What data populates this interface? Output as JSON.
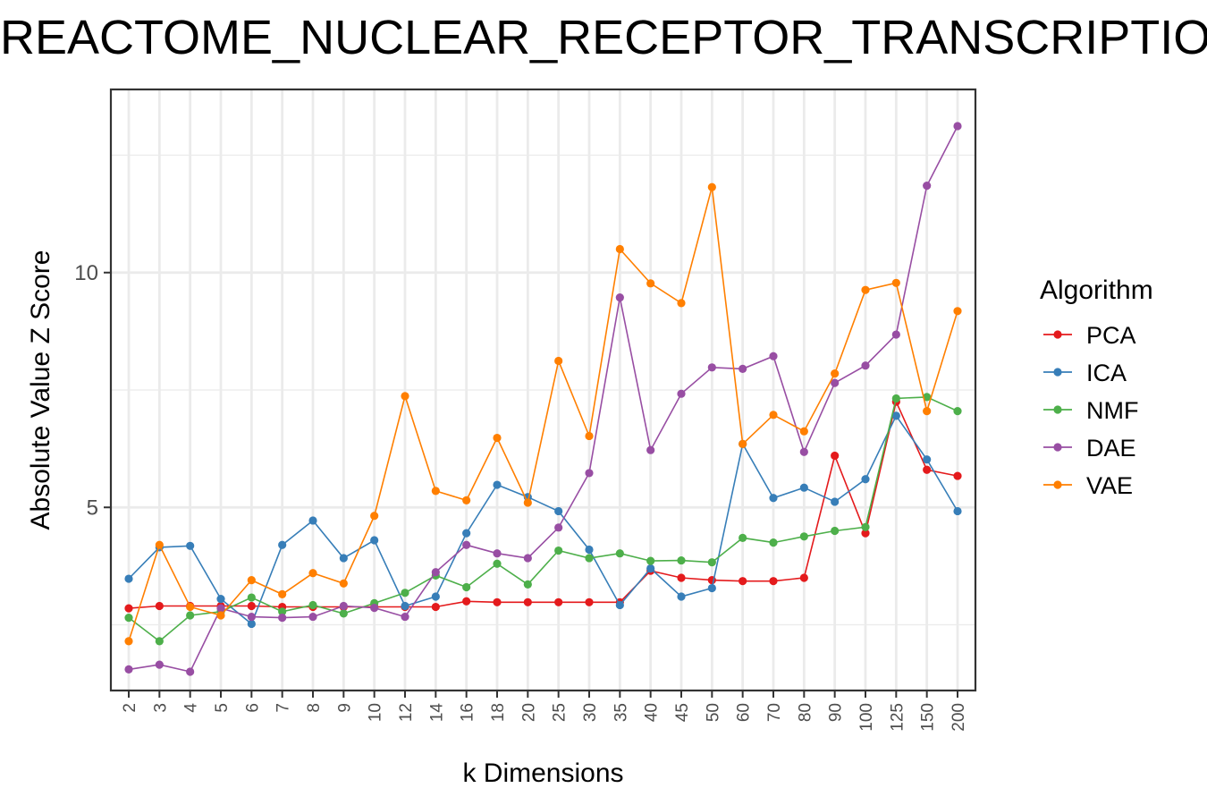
{
  "chart_data": {
    "type": "line",
    "title": "REACTOME_NUCLEAR_RECEPTOR_TRANSCRIPTION_PATHWAY",
    "xlabel": "k Dimensions",
    "ylabel": "Absolute Value Z Score",
    "categories": [
      "2",
      "3",
      "4",
      "5",
      "6",
      "7",
      "8",
      "9",
      "10",
      "12",
      "14",
      "16",
      "18",
      "20",
      "25",
      "30",
      "35",
      "40",
      "45",
      "50",
      "60",
      "70",
      "80",
      "90",
      "100",
      "125",
      "150",
      "200"
    ],
    "ylim": [
      1.1,
      13.9
    ],
    "yticks": [
      5,
      10
    ],
    "grid": true,
    "legend": {
      "title": "Algorithm",
      "position": "right"
    },
    "series": [
      {
        "name": "PCA",
        "color": "#e41a1c",
        "values": [
          2.85,
          2.9,
          2.9,
          2.9,
          2.9,
          2.88,
          2.88,
          2.88,
          2.88,
          2.88,
          2.88,
          3.0,
          2.98,
          2.98,
          2.98,
          2.98,
          2.98,
          3.65,
          3.5,
          3.45,
          3.43,
          3.43,
          3.5,
          6.1,
          4.45,
          7.25,
          5.8,
          5.67
        ]
      },
      {
        "name": "ICA",
        "color": "#377eb8",
        "values": [
          3.48,
          4.15,
          4.18,
          3.05,
          2.52,
          4.2,
          4.72,
          3.92,
          4.3,
          2.9,
          3.1,
          4.45,
          5.48,
          5.22,
          4.92,
          4.1,
          2.92,
          3.7,
          3.1,
          3.28,
          6.35,
          5.2,
          5.42,
          5.12,
          5.6,
          6.95,
          6.02,
          4.92
        ]
      },
      {
        "name": "NMF",
        "color": "#4daf4a",
        "values": [
          2.65,
          2.15,
          2.7,
          2.78,
          3.08,
          2.78,
          2.92,
          2.74,
          2.96,
          3.18,
          3.55,
          3.3,
          3.8,
          3.36,
          4.08,
          3.92,
          4.02,
          3.86,
          3.87,
          3.83,
          4.35,
          4.25,
          4.38,
          4.5,
          4.58,
          7.32,
          7.35,
          7.05
        ]
      },
      {
        "name": "DAE",
        "color": "#984ea3",
        "values": [
          1.55,
          1.65,
          1.5,
          2.85,
          2.67,
          2.65,
          2.67,
          2.9,
          2.86,
          2.67,
          3.62,
          4.2,
          4.02,
          3.92,
          4.57,
          5.73,
          9.47,
          6.22,
          7.42,
          7.98,
          7.95,
          8.22,
          6.18,
          7.65,
          8.02,
          8.68,
          11.85,
          13.12
        ]
      },
      {
        "name": "VAE",
        "color": "#ff7f00",
        "values": [
          2.15,
          4.2,
          2.88,
          2.7,
          3.45,
          3.15,
          3.6,
          3.38,
          4.82,
          7.37,
          5.35,
          5.15,
          6.48,
          5.1,
          8.12,
          6.52,
          10.5,
          9.77,
          9.35,
          11.82,
          6.35,
          6.97,
          6.62,
          7.85,
          9.63,
          9.78,
          7.05,
          9.18
        ]
      }
    ]
  }
}
